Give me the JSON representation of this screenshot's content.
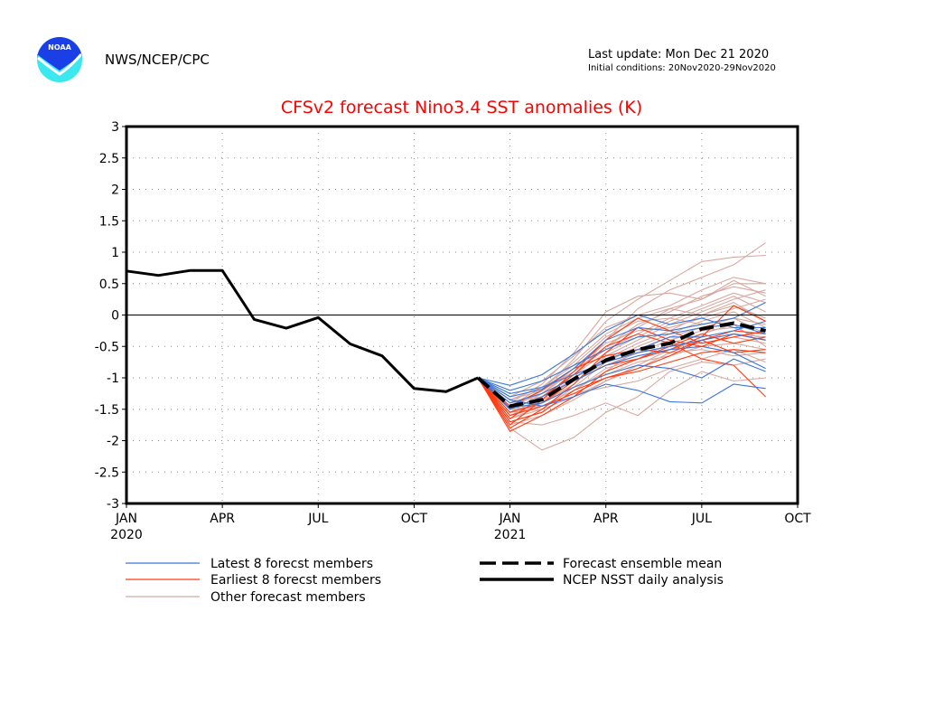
{
  "header": {
    "agency": "NWS/NCEP/CPC",
    "logo_text": "NOAA",
    "last_update": "Last update: Mon Dec 21 2020",
    "initial_conditions": "Initial conditions: 20Nov2020-29Nov2020"
  },
  "colors": {
    "title": "#ff0000",
    "latest": "#3a76d8",
    "earliest": "#ff3a10",
    "other": "#d8a8a0",
    "observed": "#000000",
    "grid": "#888888",
    "noaa_blue": "#1a3fe6",
    "noaa_cyan": "#3ce8f0"
  },
  "chart_data": {
    "type": "line",
    "title": "CFSv2 forecast Nino3.4 SST anomalies (K)",
    "xlabel": "",
    "ylabel": "",
    "ylim": [
      -3,
      3
    ],
    "yticks": [
      "3",
      "2.5",
      "2",
      "1.5",
      "1",
      "0.5",
      "0",
      "-0.5",
      "-1",
      "-1.5",
      "-2",
      "-2.5",
      "-3"
    ],
    "ytick_values": [
      3,
      2.5,
      2,
      1.5,
      1,
      0.5,
      0,
      -0.5,
      -1,
      -1.5,
      -2,
      -2.5,
      -3
    ],
    "xlim_months": [
      0,
      21
    ],
    "xticks": [
      {
        "month": 0,
        "label": "JAN",
        "year": "2020"
      },
      {
        "month": 3,
        "label": "APR",
        "year": ""
      },
      {
        "month": 6,
        "label": "JUL",
        "year": ""
      },
      {
        "month": 9,
        "label": "OCT",
        "year": ""
      },
      {
        "month": 12,
        "label": "JAN",
        "year": "2021"
      },
      {
        "month": 15,
        "label": "APR",
        "year": ""
      },
      {
        "month": 18,
        "label": "JUL",
        "year": ""
      },
      {
        "month": 21,
        "label": "OCT",
        "year": ""
      }
    ],
    "grid": true,
    "observed": {
      "name": "NCEP NSST daily analysis",
      "months": [
        0,
        1,
        2,
        3,
        4,
        5,
        6,
        7,
        8,
        9,
        10,
        11
      ],
      "values": [
        0.7,
        0.63,
        0.71,
        0.71,
        -0.07,
        -0.21,
        -0.04,
        -0.46,
        -0.65,
        -1.17,
        -1.22,
        -1.0
      ]
    },
    "ensemble_mean": {
      "name": "Forecast ensemble mean",
      "months": [
        11,
        12,
        13,
        14,
        15,
        16,
        17,
        18,
        19,
        20
      ],
      "values": [
        -1.0,
        -1.45,
        -1.35,
        -1.02,
        -0.72,
        -0.55,
        -0.45,
        -0.22,
        -0.13,
        -0.25
      ]
    },
    "member_months": [
      11,
      12,
      13,
      14,
      15,
      16,
      17,
      18,
      19,
      20
    ],
    "latest_members": {
      "name": "Latest 8 forecst members",
      "series": [
        [
          -1.0,
          -1.12,
          -0.95,
          -0.62,
          -0.25,
          0.0,
          -0.15,
          -0.05,
          -0.2,
          -0.2
        ],
        [
          -1.0,
          -1.3,
          -1.18,
          -0.85,
          -0.4,
          -0.2,
          -0.25,
          -0.15,
          -0.05,
          0.2
        ],
        [
          -1.0,
          -1.4,
          -1.25,
          -1.0,
          -0.7,
          -0.55,
          -0.35,
          -0.35,
          -0.25,
          -0.1
        ],
        [
          -1.0,
          -1.48,
          -1.4,
          -1.15,
          -0.95,
          -0.8,
          -0.85,
          -1.0,
          -0.7,
          -0.9
        ],
        [
          -1.0,
          -1.35,
          -1.45,
          -1.3,
          -1.1,
          -1.2,
          -1.38,
          -1.4,
          -1.1,
          -1.17
        ],
        [
          -1.0,
          -1.25,
          -1.15,
          -0.95,
          -0.75,
          -0.6,
          -0.5,
          -0.4,
          -0.3,
          -0.4
        ],
        [
          -1.0,
          -1.5,
          -1.3,
          -1.05,
          -0.8,
          -0.65,
          -0.55,
          -0.5,
          -0.6,
          -0.85
        ],
        [
          -1.0,
          -1.2,
          -1.05,
          -0.8,
          -0.55,
          -0.35,
          -0.3,
          -0.2,
          -0.15,
          -0.3
        ]
      ]
    },
    "earliest_members": {
      "name": "Earliest 8 forecst members",
      "series": [
        [
          -1.0,
          -1.85,
          -1.6,
          -1.3,
          -0.9,
          -0.7,
          -0.55,
          -0.35,
          0.15,
          -0.1
        ],
        [
          -1.0,
          -1.8,
          -1.5,
          -1.1,
          -0.6,
          -0.2,
          -0.4,
          -0.5,
          -0.3,
          -0.4
        ],
        [
          -1.0,
          -1.7,
          -1.55,
          -1.2,
          -1.0,
          -0.85,
          -0.65,
          -0.4,
          -0.6,
          -0.55
        ],
        [
          -1.0,
          -1.65,
          -1.3,
          -0.95,
          -0.5,
          -0.3,
          -0.45,
          -0.7,
          -0.8,
          -1.3
        ],
        [
          -1.0,
          -1.55,
          -1.4,
          -1.05,
          -0.8,
          -0.7,
          -0.5,
          -0.3,
          -0.45,
          -0.35
        ],
        [
          -1.0,
          -1.6,
          -1.45,
          -1.25,
          -1.0,
          -0.9,
          -0.75,
          -0.6,
          -0.55,
          -0.6
        ],
        [
          -1.0,
          -1.75,
          -1.35,
          -0.9,
          -0.4,
          -0.05,
          -0.25,
          -0.45,
          -0.35,
          -0.25
        ],
        [
          -1.0,
          -1.45,
          -1.2,
          -0.85,
          -0.65,
          -0.55,
          -0.6,
          -0.4,
          -0.25,
          -0.3
        ]
      ]
    },
    "other_members": {
      "name": "Other forecast members",
      "series": [
        [
          -1.0,
          -1.5,
          -1.2,
          -0.7,
          -0.1,
          0.25,
          0.55,
          0.85,
          0.92,
          0.95
        ],
        [
          -1.0,
          -1.6,
          -1.4,
          -1.0,
          -0.4,
          0.1,
          0.4,
          0.6,
          0.8,
          1.15
        ],
        [
          -1.0,
          -1.4,
          -1.1,
          -0.6,
          0.05,
          0.3,
          0.35,
          0.25,
          0.5,
          0.5
        ],
        [
          -1.0,
          -1.55,
          -1.35,
          -0.95,
          -0.5,
          -0.2,
          0.1,
          0.25,
          0.55,
          0.3
        ],
        [
          -1.0,
          -1.8,
          -2.15,
          -1.95,
          -1.55,
          -1.3,
          -0.9,
          -0.75,
          -0.8,
          -0.7
        ],
        [
          -1.0,
          -1.7,
          -1.75,
          -1.6,
          -1.4,
          -1.6,
          -1.2,
          -0.9,
          -1.05,
          -1.0
        ],
        [
          -1.0,
          -1.45,
          -1.25,
          -0.9,
          -0.55,
          -0.3,
          -0.05,
          0.15,
          0.35,
          0.2
        ],
        [
          -1.0,
          -1.35,
          -1.15,
          -0.75,
          -0.3,
          -0.05,
          0.1,
          0.0,
          0.2,
          -0.1
        ],
        [
          -1.0,
          -1.65,
          -1.5,
          -1.15,
          -0.75,
          -0.5,
          -0.3,
          -0.1,
          0.05,
          -0.2
        ],
        [
          -1.0,
          -1.5,
          -1.45,
          -1.2,
          -0.85,
          -0.7,
          -0.45,
          -0.3,
          -0.15,
          -0.5
        ],
        [
          -1.0,
          -1.75,
          -1.6,
          -1.35,
          -1.05,
          -0.85,
          -0.6,
          -0.55,
          -0.65,
          -0.6
        ],
        [
          -1.0,
          -1.4,
          -1.3,
          -1.05,
          -0.8,
          -0.6,
          -0.5,
          -0.45,
          -0.35,
          -0.45
        ],
        [
          -1.0,
          -1.55,
          -1.25,
          -0.85,
          -0.45,
          -0.25,
          -0.2,
          -0.05,
          0.1,
          0.25
        ],
        [
          -1.0,
          -1.6,
          -1.4,
          -1.1,
          -0.65,
          -0.4,
          -0.15,
          0.05,
          0.25,
          0.4
        ],
        [
          -1.0,
          -1.3,
          -1.05,
          -0.65,
          -0.2,
          0.0,
          0.15,
          0.4,
          0.6,
          0.5
        ],
        [
          -1.0,
          -1.45,
          -1.35,
          -1.15,
          -0.95,
          -0.75,
          -0.65,
          -0.5,
          -0.45,
          -0.55
        ],
        [
          -1.0,
          -1.7,
          -1.55,
          -1.2,
          -0.9,
          -0.55,
          -0.35,
          -0.2,
          -0.05,
          -0.15
        ],
        [
          -1.0,
          -1.5,
          -1.3,
          -0.95,
          -0.6,
          -0.35,
          -0.1,
          0.1,
          0.3,
          0.05
        ],
        [
          -1.0,
          -1.65,
          -1.45,
          -1.25,
          -1.15,
          -1.05,
          -0.85,
          -0.7,
          -0.55,
          -0.75
        ],
        [
          -1.0,
          -1.35,
          -1.2,
          -0.9,
          -0.5,
          -0.15,
          0.05,
          0.3,
          0.45,
          0.35
        ],
        [
          -1.0,
          -1.55,
          -1.5,
          -1.3,
          -1.05,
          -0.8,
          -0.55,
          -0.4,
          -0.3,
          -0.35
        ],
        [
          -1.0,
          -1.45,
          -1.15,
          -0.8,
          -0.35,
          -0.1,
          -0.05,
          -0.15,
          -0.05,
          -0.3
        ],
        [
          -1.0,
          -1.6,
          -1.35,
          -1.0,
          -0.7,
          -0.45,
          -0.25,
          0.0,
          0.15,
          -0.05
        ],
        [
          -1.0,
          -1.4,
          -1.25,
          -1.0,
          -0.75,
          -0.6,
          -0.4,
          -0.25,
          -0.2,
          -0.4
        ]
      ]
    },
    "legend": {
      "placement": "bottom",
      "entries": [
        {
          "key": "latest",
          "label": "Latest 8 forecst members",
          "style": "thin-blue"
        },
        {
          "key": "earliest",
          "label": "Earliest 8 forecst members",
          "style": "thin-red"
        },
        {
          "key": "other",
          "label": "Other forecast members",
          "style": "thin-pink"
        },
        {
          "key": "mean",
          "label": "Forecast ensemble mean",
          "style": "thick-dashed-black"
        },
        {
          "key": "observed",
          "label": "NCEP NSST daily analysis",
          "style": "thick-solid-black"
        }
      ]
    }
  }
}
